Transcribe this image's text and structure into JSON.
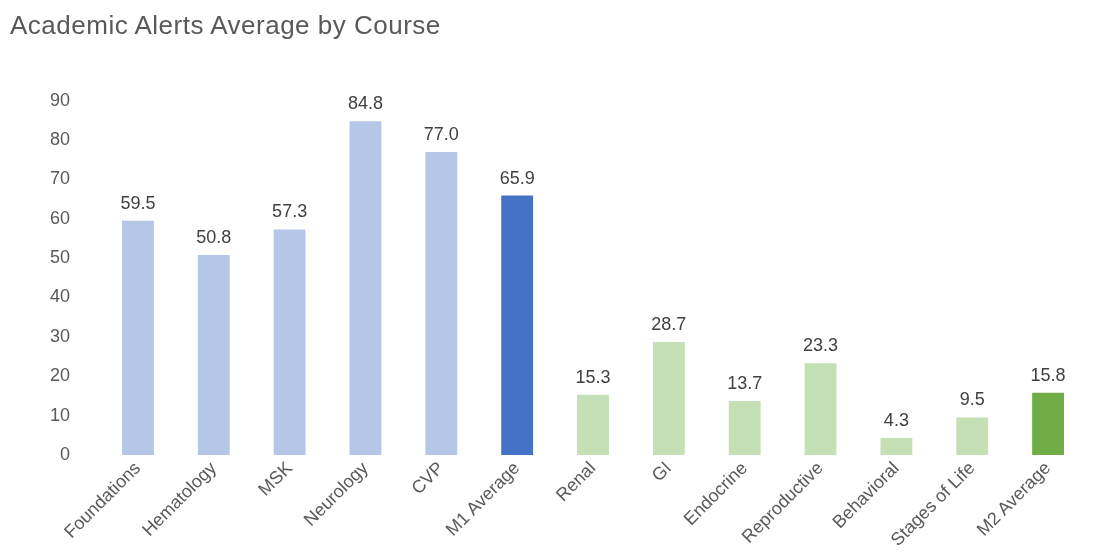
{
  "chart_data": {
    "type": "bar",
    "title": "Academic Alerts Average by Course",
    "categories": [
      "Foundations",
      "Hematology",
      "MSK",
      "Neurology",
      "CVP",
      "M1 Average",
      "Renal",
      "GI",
      "Endocrine",
      "Reproductive",
      "Behavioral",
      "Stages of Life",
      "M2 Average"
    ],
    "values": [
      59.5,
      50.8,
      57.3,
      84.8,
      77.0,
      65.9,
      15.3,
      28.7,
      13.7,
      23.3,
      4.3,
      9.5,
      15.8
    ],
    "value_labels": [
      "59.5",
      "50.8",
      "57.3",
      "84.8",
      "77.0",
      "65.9",
      "15.3",
      "28.7",
      "13.7",
      "23.3",
      "4.3",
      "9.5",
      "15.8"
    ],
    "colors": [
      "#b4c7e7",
      "#b4c7e7",
      "#b4c7e7",
      "#b4c7e7",
      "#b4c7e7",
      "#4472c4",
      "#c5e0b4",
      "#c5e0b4",
      "#c5e0b4",
      "#c5e0b4",
      "#c5e0b4",
      "#c5e0b4",
      "#70ad47"
    ],
    "ylim": [
      0,
      90
    ],
    "yticks": [
      0,
      10,
      20,
      30,
      40,
      50,
      60,
      70,
      80,
      90
    ],
    "grid": false,
    "legend": false
  }
}
